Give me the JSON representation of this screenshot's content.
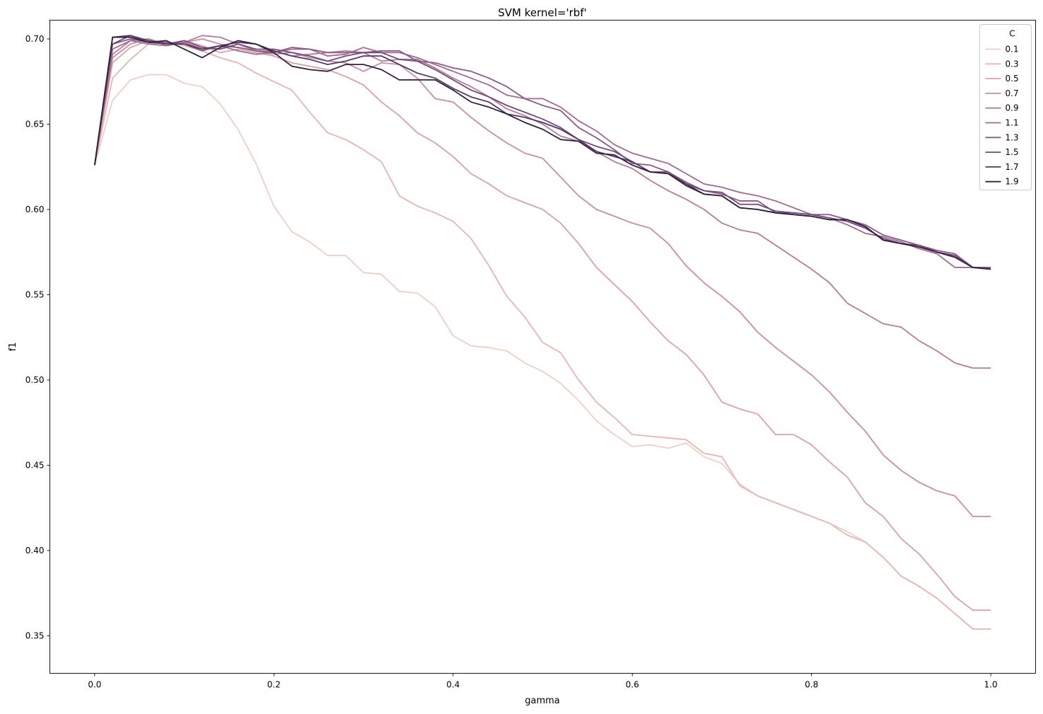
{
  "chart_data": {
    "type": "line",
    "title": "SVM kernel='rbf'",
    "xlabel": "gamma",
    "ylabel": "f1",
    "xlim": [
      -0.05,
      1.05
    ],
    "ylim": [
      0.328,
      0.711
    ],
    "xticks": [
      0.0,
      0.2,
      0.4,
      0.6,
      0.8,
      1.0
    ],
    "xtick_labels": [
      "0.0",
      "0.2",
      "0.4",
      "0.6",
      "0.8",
      "1.0"
    ],
    "yticks": [
      0.35,
      0.4,
      0.45,
      0.5,
      0.55,
      0.6,
      0.65,
      0.7
    ],
    "ytick_labels": [
      "0.35",
      "0.40",
      "0.45",
      "0.50",
      "0.55",
      "0.60",
      "0.65",
      "0.70"
    ],
    "grid": false,
    "legend": {
      "title": "C",
      "placement": "top-right"
    },
    "x": [
      0.0,
      0.02,
      0.04,
      0.06,
      0.08,
      0.1,
      0.12,
      0.14,
      0.16,
      0.18,
      0.2,
      0.22,
      0.24,
      0.26,
      0.28,
      0.3,
      0.32,
      0.34,
      0.36,
      0.38,
      0.4,
      0.42,
      0.44,
      0.46,
      0.48,
      0.5,
      0.52,
      0.54,
      0.56,
      0.58,
      0.6,
      0.62,
      0.64,
      0.66,
      0.68,
      0.7,
      0.72,
      0.74,
      0.76,
      0.78,
      0.8,
      0.82,
      0.84,
      0.86,
      0.88,
      0.9,
      0.92,
      0.94,
      0.96,
      0.98,
      1.0
    ],
    "series": [
      {
        "name": "0.1",
        "color": "#ecd0c6",
        "values": [
          0.626,
          0.664,
          0.676,
          0.679,
          0.679,
          0.674,
          0.672,
          0.662,
          0.647,
          0.627,
          0.602,
          0.587,
          0.581,
          0.573,
          0.573,
          0.563,
          0.562,
          0.552,
          0.551,
          0.543,
          0.526,
          0.52,
          0.519,
          0.517,
          0.51,
          0.505,
          0.498,
          0.488,
          0.476,
          0.468,
          0.461,
          0.462,
          0.46,
          0.463,
          0.455,
          0.451,
          0.439,
          0.432,
          0.428,
          0.424,
          0.42,
          0.416,
          0.411,
          0.405,
          0.396,
          0.385,
          0.379,
          0.372,
          0.363,
          0.354,
          0.354
        ]
      },
      {
        "name": "0.3",
        "color": "#e3b7b1",
        "values": [
          0.626,
          0.677,
          0.688,
          0.697,
          0.698,
          0.696,
          0.693,
          0.689,
          0.686,
          0.68,
          0.675,
          0.67,
          0.657,
          0.645,
          0.641,
          0.635,
          0.628,
          0.608,
          0.602,
          0.598,
          0.593,
          0.583,
          0.567,
          0.549,
          0.537,
          0.522,
          0.516,
          0.5,
          0.487,
          0.478,
          0.468,
          0.467,
          0.466,
          0.465,
          0.457,
          0.455,
          0.438,
          0.432,
          0.428,
          0.424,
          0.42,
          0.416,
          0.409,
          0.405,
          0.396,
          0.385,
          0.379,
          0.372,
          0.363,
          0.354,
          0.354
        ]
      },
      {
        "name": "0.5",
        "color": "#d8a2a6",
        "values": [
          0.626,
          0.686,
          0.695,
          0.699,
          0.697,
          0.699,
          0.696,
          0.692,
          0.694,
          0.692,
          0.69,
          0.686,
          0.684,
          0.682,
          0.678,
          0.673,
          0.663,
          0.655,
          0.645,
          0.639,
          0.631,
          0.621,
          0.615,
          0.608,
          0.604,
          0.6,
          0.592,
          0.58,
          0.566,
          0.556,
          0.546,
          0.534,
          0.523,
          0.515,
          0.503,
          0.487,
          0.483,
          0.48,
          0.468,
          0.468,
          0.462,
          0.452,
          0.443,
          0.428,
          0.42,
          0.407,
          0.398,
          0.386,
          0.373,
          0.365,
          0.365
        ]
      },
      {
        "name": "0.7",
        "color": "#c98ea0",
        "values": [
          0.626,
          0.689,
          0.697,
          0.7,
          0.696,
          0.698,
          0.7,
          0.697,
          0.695,
          0.693,
          0.691,
          0.692,
          0.689,
          0.687,
          0.686,
          0.681,
          0.686,
          0.685,
          0.677,
          0.665,
          0.663,
          0.654,
          0.646,
          0.639,
          0.633,
          0.63,
          0.619,
          0.608,
          0.6,
          0.596,
          0.592,
          0.589,
          0.58,
          0.567,
          0.557,
          0.549,
          0.54,
          0.528,
          0.519,
          0.511,
          0.503,
          0.493,
          0.481,
          0.47,
          0.456,
          0.447,
          0.44,
          0.435,
          0.432,
          0.42,
          0.42
        ]
      },
      {
        "name": "0.9",
        "color": "#b77b98",
        "values": [
          0.626,
          0.691,
          0.699,
          0.7,
          0.697,
          0.698,
          0.702,
          0.701,
          0.697,
          0.693,
          0.693,
          0.69,
          0.691,
          0.692,
          0.693,
          0.692,
          0.687,
          0.688,
          0.688,
          0.683,
          0.677,
          0.672,
          0.666,
          0.659,
          0.655,
          0.65,
          0.643,
          0.64,
          0.634,
          0.628,
          0.624,
          0.617,
          0.611,
          0.606,
          0.6,
          0.592,
          0.588,
          0.586,
          0.579,
          0.572,
          0.565,
          0.557,
          0.545,
          0.539,
          0.533,
          0.531,
          0.523,
          0.517,
          0.51,
          0.507,
          0.507
        ]
      },
      {
        "name": "1.1",
        "color": "#a26a8f",
        "values": [
          0.626,
          0.694,
          0.699,
          0.697,
          0.696,
          0.698,
          0.694,
          0.696,
          0.693,
          0.691,
          0.692,
          0.694,
          0.694,
          0.69,
          0.691,
          0.695,
          0.692,
          0.692,
          0.689,
          0.685,
          0.681,
          0.677,
          0.673,
          0.667,
          0.665,
          0.665,
          0.66,
          0.652,
          0.646,
          0.638,
          0.633,
          0.63,
          0.627,
          0.621,
          0.615,
          0.613,
          0.61,
          0.608,
          0.605,
          0.601,
          0.597,
          0.595,
          0.591,
          0.586,
          0.584,
          0.581,
          0.577,
          0.574,
          0.566,
          0.566,
          0.566
        ]
      },
      {
        "name": "1.3",
        "color": "#8c5a86",
        "values": [
          0.626,
          0.697,
          0.7,
          0.698,
          0.698,
          0.697,
          0.693,
          0.696,
          0.695,
          0.693,
          0.692,
          0.695,
          0.694,
          0.692,
          0.692,
          0.692,
          0.693,
          0.693,
          0.687,
          0.686,
          0.683,
          0.681,
          0.677,
          0.672,
          0.665,
          0.661,
          0.658,
          0.648,
          0.642,
          0.635,
          0.627,
          0.626,
          0.622,
          0.616,
          0.611,
          0.609,
          0.605,
          0.605,
          0.598,
          0.598,
          0.597,
          0.597,
          0.594,
          0.591,
          0.585,
          0.582,
          0.579,
          0.576,
          0.574,
          0.566,
          0.566
        ]
      },
      {
        "name": "1.5",
        "color": "#704b7a",
        "values": [
          0.626,
          0.697,
          0.702,
          0.698,
          0.697,
          0.699,
          0.695,
          0.694,
          0.697,
          0.694,
          0.694,
          0.692,
          0.69,
          0.687,
          0.69,
          0.692,
          0.692,
          0.688,
          0.687,
          0.682,
          0.676,
          0.67,
          0.666,
          0.661,
          0.657,
          0.653,
          0.648,
          0.641,
          0.637,
          0.634,
          0.628,
          0.622,
          0.622,
          0.615,
          0.611,
          0.61,
          0.603,
          0.603,
          0.599,
          0.598,
          0.597,
          0.595,
          0.593,
          0.589,
          0.583,
          0.58,
          0.579,
          0.575,
          0.573,
          0.566,
          0.565
        ]
      },
      {
        "name": "1.7",
        "color": "#523a66",
        "values": [
          0.626,
          0.701,
          0.702,
          0.699,
          0.697,
          0.697,
          0.694,
          0.696,
          0.698,
          0.697,
          0.693,
          0.69,
          0.688,
          0.685,
          0.687,
          0.69,
          0.69,
          0.685,
          0.68,
          0.677,
          0.671,
          0.666,
          0.663,
          0.656,
          0.654,
          0.651,
          0.647,
          0.641,
          0.634,
          0.631,
          0.628,
          0.622,
          0.621,
          0.615,
          0.609,
          0.608,
          0.601,
          0.6,
          0.598,
          0.597,
          0.596,
          0.594,
          0.594,
          0.59,
          0.582,
          0.58,
          0.578,
          0.575,
          0.572,
          0.566,
          0.565
        ]
      },
      {
        "name": "1.9",
        "color": "#2e2240",
        "values": [
          0.626,
          0.701,
          0.701,
          0.698,
          0.699,
          0.694,
          0.689,
          0.695,
          0.699,
          0.697,
          0.692,
          0.684,
          0.682,
          0.681,
          0.685,
          0.685,
          0.682,
          0.676,
          0.676,
          0.676,
          0.67,
          0.663,
          0.66,
          0.656,
          0.651,
          0.647,
          0.641,
          0.64,
          0.633,
          0.632,
          0.626,
          0.622,
          0.621,
          0.614,
          0.609,
          0.608,
          0.601,
          0.6,
          0.598,
          0.597,
          0.596,
          0.594,
          0.594,
          0.59,
          0.582,
          0.58,
          0.578,
          0.575,
          0.572,
          0.566,
          0.565
        ]
      }
    ]
  }
}
